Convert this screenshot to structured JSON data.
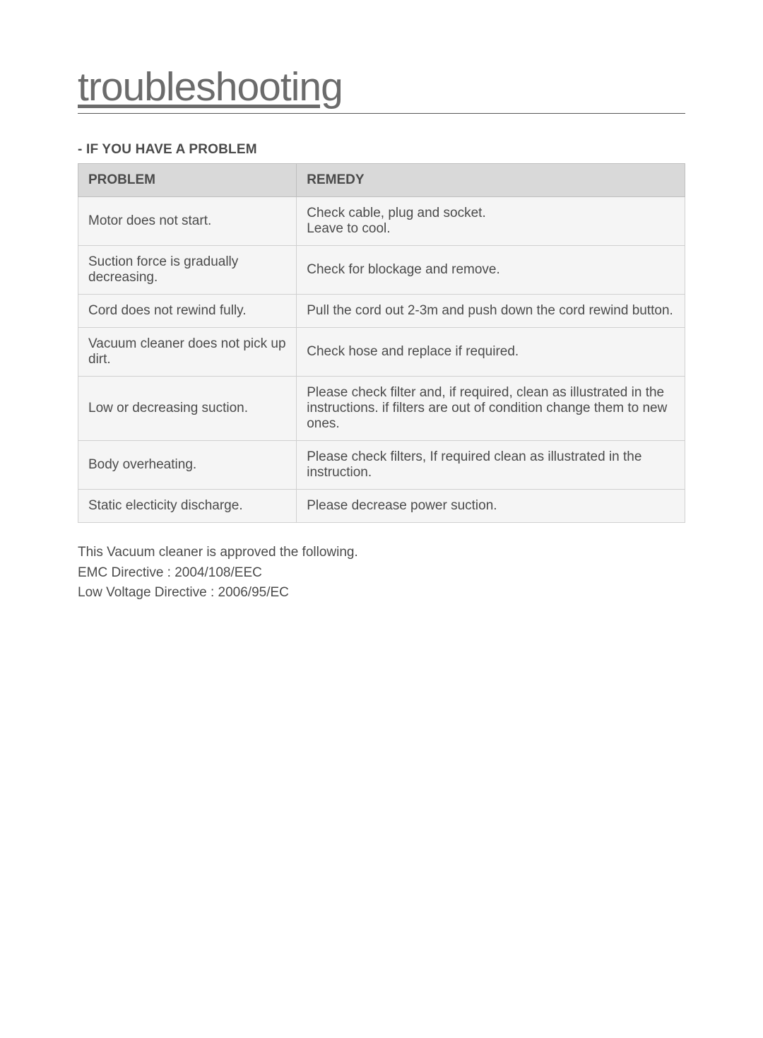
{
  "page": {
    "title": "troubleshooting",
    "title_fontsize": 57,
    "title_color": "#6b6b6b",
    "subhead": "- IF YOU HAVE A PROBLEM",
    "subhead_fontsize": 19,
    "body_fontsize": 19,
    "body_color": "#4a4a4a",
    "background_color": "#ffffff"
  },
  "table": {
    "header_bg": "#d9d9d9",
    "row_bg": "#f5f5f5",
    "border_color": "#bfbfbf",
    "col_widths_pct": [
      36,
      64
    ],
    "columns": [
      "PROBLEM",
      "REMEDY"
    ],
    "rows": [
      {
        "problem": "Motor does not start.",
        "remedy": "Check cable, plug and socket.\nLeave to cool."
      },
      {
        "problem": "Suction force is gradually decreasing.",
        "remedy": "Check for blockage and remove."
      },
      {
        "problem": "Cord does not rewind fully.",
        "remedy": "Pull the cord out 2-3m and push down the cord rewind button."
      },
      {
        "problem": "Vacuum cleaner does not pick up dirt.",
        "remedy": "Check hose and replace if required."
      },
      {
        "problem": "Low or decreasing suction.",
        "remedy": "Please check filter and, if required, clean as illustrated in the instructions. if filters are out of condition change them to new ones."
      },
      {
        "problem": "Body overheating.",
        "remedy": "Please check filters, If required clean as illustrated in the instruction."
      },
      {
        "problem": "Static electicity discharge.",
        "remedy": "Please decrease power suction."
      }
    ]
  },
  "footer": {
    "line1": "This Vacuum cleaner is approved the following.",
    "line2": "EMC Directive : 2004/108/EEC",
    "line3": "Low Voltage Directive : 2006/95/EC"
  }
}
